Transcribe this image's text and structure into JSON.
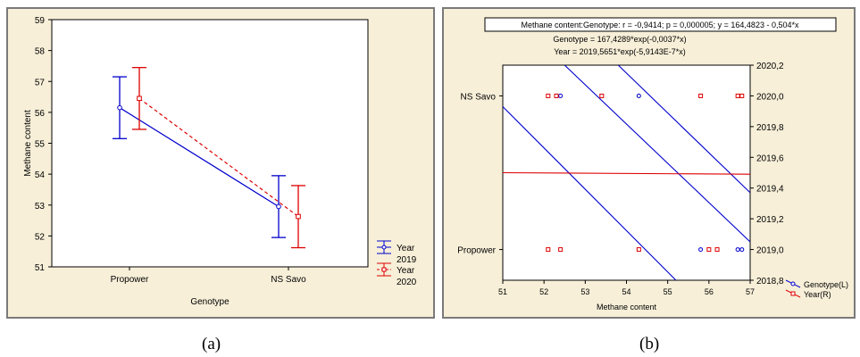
{
  "chart_data": [
    {
      "type": "line",
      "panel_label": "(a)",
      "xlabel": "Genotype",
      "ylabel": "Methane content",
      "categories": [
        "Propower",
        "NS Savo"
      ],
      "ylim": [
        51,
        59
      ],
      "yticks": [
        "51",
        "52",
        "53",
        "54",
        "55",
        "56",
        "57",
        "58",
        "59"
      ],
      "grid": false,
      "legend_position": "bottom-right",
      "series": [
        {
          "name": "Year\n2019",
          "legend_lines": [
            "Year",
            "2019"
          ],
          "color": "#0000cc",
          "line_style": "solid",
          "marker": "circle",
          "values": [
            56.15,
            52.95
          ],
          "error_low": [
            55.15,
            51.95
          ],
          "error_high": [
            57.15,
            53.95
          ]
        },
        {
          "name": "Year\n2020",
          "legend_lines": [
            "Year",
            "2020"
          ],
          "color": "#dd0000",
          "line_style": "dashed",
          "marker": "square",
          "values": [
            56.45,
            52.63
          ],
          "error_low": [
            55.45,
            51.62
          ],
          "error_high": [
            57.45,
            53.63
          ]
        }
      ]
    },
    {
      "type": "scatter",
      "panel_label": "(b)",
      "header_line1": "Methane content:Genotype:   r = -0,9414; p = 0,000005;  y = 164,4823 - 0,504*x",
      "header_line2": "Genotype = 167,4289*exp(-0,0037*x)",
      "header_line3": "Year = 2019,5651*exp(-5,9143E-7*x)",
      "xlabel": "Methane content",
      "xlim": [
        51,
        57
      ],
      "xticks": [
        "51",
        "52",
        "53",
        "54",
        "55",
        "56",
        "57"
      ],
      "left_axis_labels": [
        "NS Savo",
        "Propower"
      ],
      "right_ylim": [
        2018.8,
        2020.2
      ],
      "right_yticks": [
        "2018,8",
        "2019,0",
        "2019,2",
        "2019,4",
        "2019,6",
        "2019,8",
        "2020,0",
        "2020,2"
      ],
      "legend_position": "bottom-right",
      "series": [
        {
          "name": "Genotype(L)",
          "color": "#0000cc",
          "marker": "circle",
          "points": [
            [
              52.3,
              2020.0
            ],
            [
              52.4,
              2020.0
            ],
            [
              54.3,
              2020.0
            ],
            [
              55.8,
              2019.0
            ],
            [
              56.7,
              2019.0
            ],
            [
              56.8,
              2019.0
            ]
          ]
        },
        {
          "name": "Year(R)",
          "color": "#dd0000",
          "marker": "square",
          "points": [
            [
              52.1,
              2020.0
            ],
            [
              52.3,
              2020.0
            ],
            [
              53.4,
              2020.0
            ],
            [
              55.8,
              2020.0
            ],
            [
              56.7,
              2020.0
            ],
            [
              56.8,
              2020.0
            ],
            [
              52.1,
              2019.0
            ],
            [
              52.4,
              2019.0
            ],
            [
              54.3,
              2019.0
            ],
            [
              56.0,
              2019.0
            ],
            [
              56.2,
              2019.0
            ]
          ]
        }
      ],
      "fit_lines": [
        {
          "name": "Genotype fit",
          "color": "#0000cc",
          "x": [
            51,
            55.2
          ],
          "y": [
            2019.93,
            2018.8
          ]
        },
        {
          "name": "Genotype band upper",
          "color": "#0000cc",
          "x": [
            52.5,
            57
          ],
          "y": [
            2020.2,
            2019.05
          ]
        },
        {
          "name": "Genotype band lower",
          "color": "#0000cc",
          "x": [
            53.8,
            57
          ],
          "y": [
            2020.2,
            2019.37
          ]
        },
        {
          "name": "Year fit",
          "color": "#dd0000",
          "x": [
            51,
            57
          ],
          "y": [
            2019.5,
            2019.49
          ]
        }
      ]
    }
  ]
}
